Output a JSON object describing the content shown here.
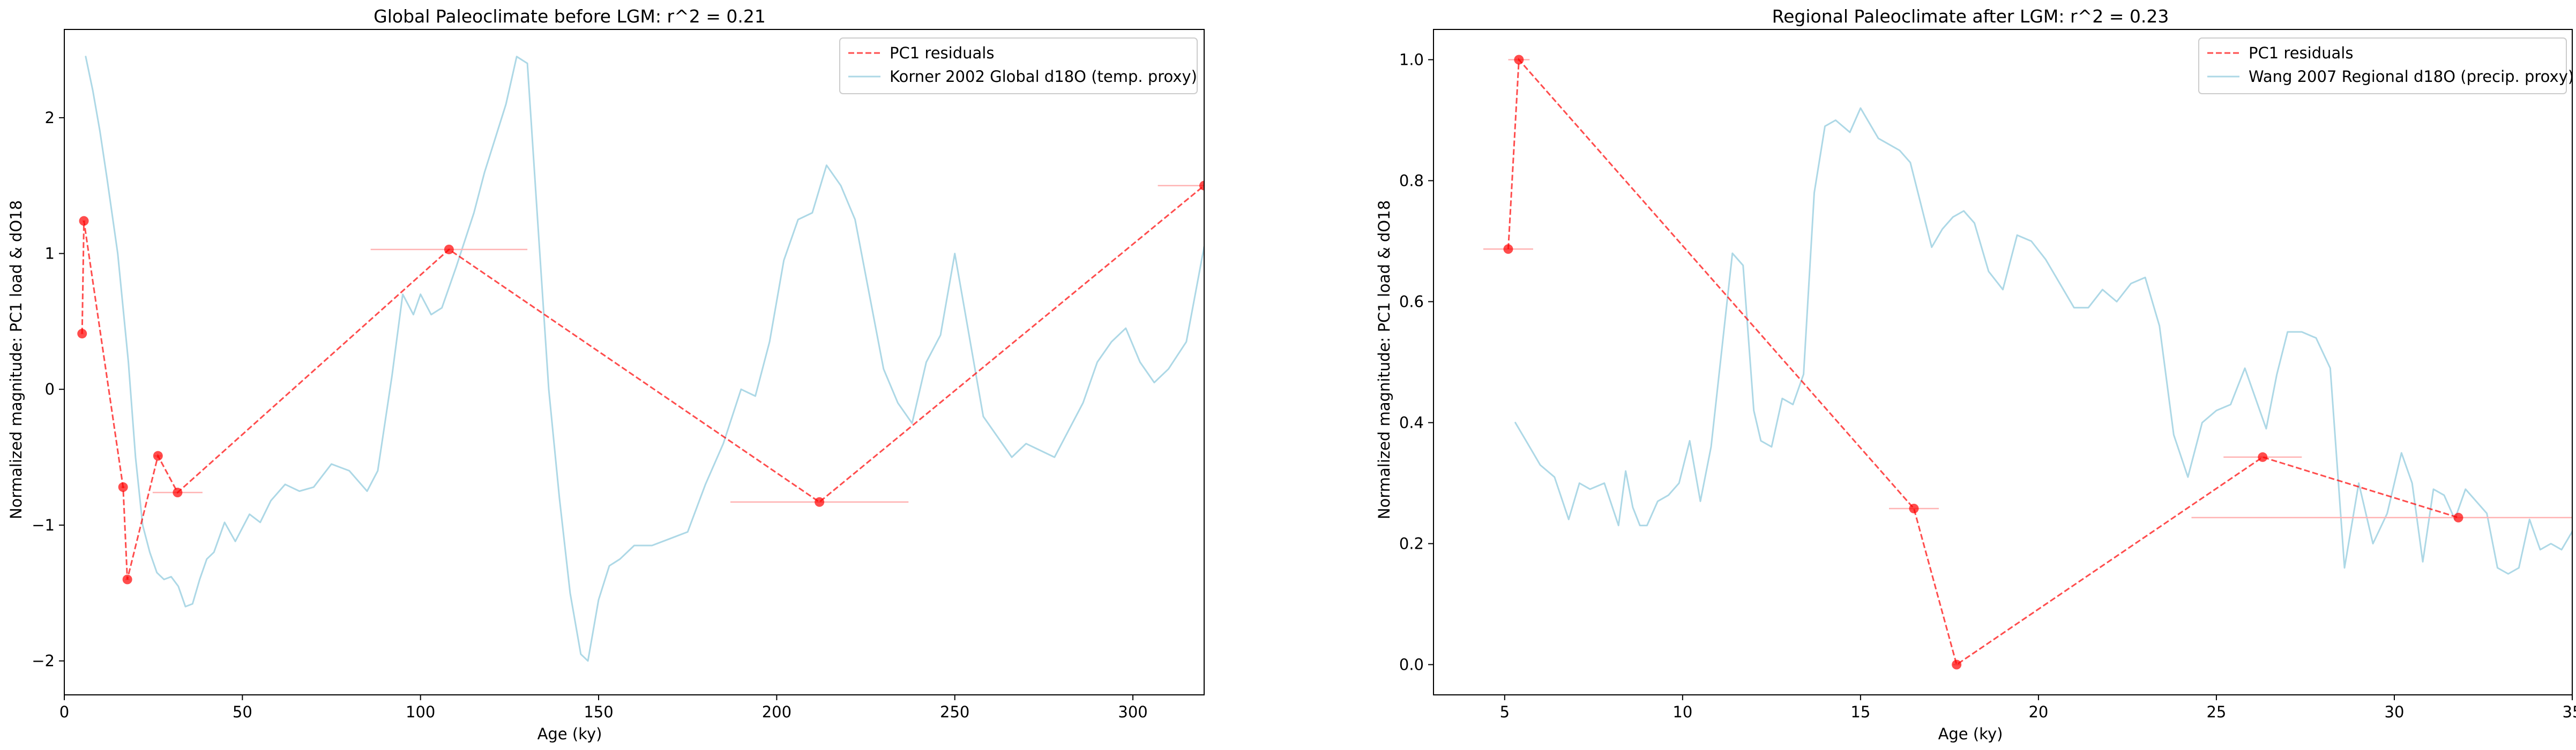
{
  "colors": {
    "residuals": "#ff0000",
    "proxy": "#add8e6",
    "error_bar": "#ffb3b3",
    "axis": "#000000"
  },
  "chart_data": [
    {
      "type": "line",
      "title": "Global Paleoclimate before LGM: r^2 = 0.21",
      "xlabel": "Age (ky)",
      "ylabel": "Normalized magnitude: PC1 load & dO18",
      "xlim": [
        0,
        320
      ],
      "ylim": [
        -2.25,
        2.65
      ],
      "xticks": [
        0,
        50,
        100,
        150,
        200,
        250,
        300
      ],
      "yticks": [
        -2,
        -1,
        0,
        1,
        2
      ],
      "grid": false,
      "legend": "top-right",
      "series": [
        {
          "name": "PC1 residuals",
          "style": "dashed-with-markers",
          "x": [
            5,
            5.5,
            16.5,
            17.7,
            26.3,
            31.8,
            108,
            212,
            320
          ],
          "y": [
            0.41,
            1.24,
            -0.72,
            -1.4,
            -0.49,
            -0.76,
            1.03,
            -0.83,
            1.5
          ],
          "xerr": [
            0.4,
            0.4,
            0.6,
            0.6,
            1,
            7,
            22,
            25,
            13
          ]
        },
        {
          "name": "Korner 2002 Global d18O (temp. proxy)",
          "style": "solid",
          "x": [
            6,
            8,
            10,
            12,
            15,
            18,
            20,
            22,
            24,
            26,
            28,
            30,
            32,
            34,
            36,
            38,
            40,
            42,
            45,
            48,
            52,
            55,
            58,
            62,
            66,
            70,
            75,
            80,
            85,
            88,
            92,
            95,
            98,
            100,
            103,
            106,
            110,
            115,
            118,
            121,
            124,
            127,
            130,
            133,
            136,
            139,
            142,
            145,
            147,
            150,
            153,
            156,
            160,
            165,
            170,
            175,
            180,
            185,
            190,
            194,
            198,
            202,
            206,
            210,
            214,
            218,
            222,
            226,
            230,
            234,
            238,
            242,
            246,
            250,
            254,
            258,
            262,
            266,
            270,
            274,
            278,
            282,
            286,
            290,
            294,
            298,
            302,
            306,
            310,
            315,
            320
          ],
          "y": [
            2.45,
            2.2,
            1.9,
            1.55,
            1.0,
            0.2,
            -0.5,
            -1.0,
            -1.2,
            -1.35,
            -1.4,
            -1.38,
            -1.45,
            -1.6,
            -1.58,
            -1.4,
            -1.25,
            -1.2,
            -0.98,
            -1.12,
            -0.92,
            -0.98,
            -0.82,
            -0.7,
            -0.75,
            -0.72,
            -0.55,
            -0.6,
            -0.75,
            -0.6,
            0.1,
            0.7,
            0.55,
            0.7,
            0.55,
            0.6,
            0.9,
            1.3,
            1.6,
            1.85,
            2.1,
            2.45,
            2.4,
            1.2,
            0.0,
            -0.8,
            -1.5,
            -1.95,
            -2.0,
            -1.55,
            -1.3,
            -1.25,
            -1.15,
            -1.15,
            -1.1,
            -1.05,
            -0.7,
            -0.4,
            0.0,
            -0.05,
            0.35,
            0.95,
            1.25,
            1.3,
            1.65,
            1.5,
            1.25,
            0.7,
            0.15,
            -0.1,
            -0.25,
            0.2,
            0.4,
            1.0,
            0.4,
            -0.2,
            -0.35,
            -0.5,
            -0.4,
            -0.45,
            -0.5,
            -0.3,
            -0.1,
            0.2,
            0.35,
            0.45,
            0.2,
            0.05,
            0.15,
            0.35,
            1.05
          ]
        }
      ]
    },
    {
      "type": "line",
      "title": "Regional Paleoclimate after LGM: r^2 = 0.23",
      "xlabel": "Age (ky)",
      "ylabel": "Normalized magnitude: PC1 load & dO18",
      "xlim": [
        3,
        35
      ],
      "ylim": [
        -0.05,
        1.05
      ],
      "xticks": [
        5,
        10,
        15,
        20,
        25,
        30,
        35
      ],
      "yticks": [
        0.0,
        0.2,
        0.4,
        0.6,
        0.8,
        1.0
      ],
      "grid": false,
      "legend": "top-right",
      "series": [
        {
          "name": "PC1 residuals",
          "style": "dashed-with-markers",
          "x": [
            5.1,
            5.4,
            16.5,
            17.7,
            26.3,
            31.8
          ],
          "y": [
            0.687,
            1.0,
            0.258,
            0.0,
            0.343,
            0.243
          ],
          "xerr": [
            0.7,
            0.3,
            0.7,
            0.1,
            1.1,
            7.5
          ]
        },
        {
          "name": "Wang 2007 Regional d18O (precip. proxy)",
          "style": "solid",
          "x": [
            5.3,
            5.6,
            6.0,
            6.4,
            6.8,
            7.1,
            7.4,
            7.8,
            8.2,
            8.4,
            8.6,
            8.8,
            9.0,
            9.3,
            9.6,
            9.9,
            10.2,
            10.5,
            10.8,
            11.1,
            11.4,
            11.7,
            12.0,
            12.2,
            12.5,
            12.8,
            13.1,
            13.4,
            13.7,
            14.0,
            14.3,
            14.7,
            15.0,
            15.2,
            15.5,
            15.8,
            16.1,
            16.4,
            16.7,
            17.0,
            17.3,
            17.6,
            17.9,
            18.2,
            18.6,
            19.0,
            19.4,
            19.8,
            20.2,
            20.6,
            21.0,
            21.4,
            21.8,
            22.2,
            22.6,
            23.0,
            23.4,
            23.8,
            24.2,
            24.6,
            25.0,
            25.4,
            25.8,
            26.1,
            26.4,
            26.7,
            27.0,
            27.4,
            27.8,
            28.2,
            28.6,
            29.0,
            29.4,
            29.8,
            30.2,
            30.5,
            30.8,
            31.1,
            31.4,
            31.7,
            32.0,
            32.3,
            32.6,
            32.9,
            33.2,
            33.5,
            33.8,
            34.1,
            34.4,
            34.7,
            35.0
          ],
          "y": [
            0.4,
            0.37,
            0.33,
            0.31,
            0.24,
            0.3,
            0.29,
            0.3,
            0.23,
            0.32,
            0.26,
            0.23,
            0.23,
            0.27,
            0.28,
            0.3,
            0.37,
            0.27,
            0.36,
            0.52,
            0.68,
            0.66,
            0.42,
            0.37,
            0.36,
            0.44,
            0.43,
            0.48,
            0.78,
            0.89,
            0.9,
            0.88,
            0.92,
            0.9,
            0.87,
            0.86,
            0.85,
            0.83,
            0.76,
            0.69,
            0.72,
            0.74,
            0.75,
            0.73,
            0.65,
            0.62,
            0.71,
            0.7,
            0.67,
            0.63,
            0.59,
            0.59,
            0.62,
            0.6,
            0.63,
            0.64,
            0.56,
            0.38,
            0.31,
            0.4,
            0.42,
            0.43,
            0.49,
            0.44,
            0.39,
            0.48,
            0.55,
            0.55,
            0.54,
            0.49,
            0.16,
            0.3,
            0.2,
            0.25,
            0.35,
            0.3,
            0.17,
            0.29,
            0.28,
            0.24,
            0.29,
            0.27,
            0.25,
            0.16,
            0.15,
            0.16,
            0.24,
            0.19,
            0.2,
            0.19,
            0.22
          ]
        }
      ]
    }
  ]
}
